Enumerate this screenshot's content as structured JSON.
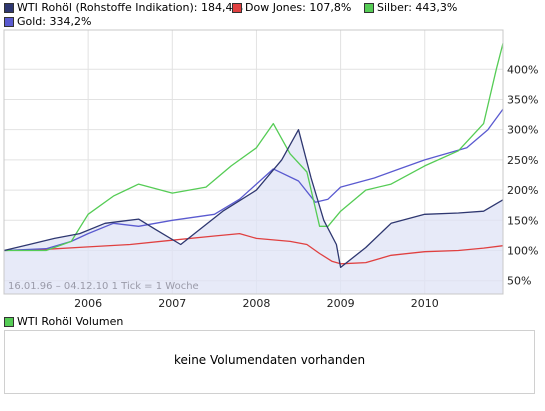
{
  "chart_data": [
    {
      "type": "line",
      "date_range": "16.01.96 – 04.12.10",
      "tick_info": "1 Tick = 1 Woche",
      "x_ticks": [
        "2006",
        "2007",
        "2008",
        "2009",
        "2010"
      ],
      "y_ticks": [
        "50%",
        "100%",
        "150%",
        "200%",
        "250%",
        "300%",
        "350%",
        "400%"
      ],
      "ylim": [
        28,
        465
      ],
      "grid": true,
      "legend_position": "top",
      "series": [
        {
          "name": "WTI Rohöl (Rohstoffe Indikation)",
          "value_label": "184,4%",
          "color": "#2e3770",
          "filled": true,
          "x": [
            2005.0,
            2005.3,
            2005.6,
            2005.9,
            2006.2,
            2006.6,
            2006.8,
            2007.1,
            2007.6,
            2008.0,
            2008.3,
            2008.5,
            2008.65,
            2008.8,
            2008.95,
            2009.0,
            2009.3,
            2009.6,
            2010.0,
            2010.4,
            2010.7,
            2010.93
          ],
          "values": [
            100,
            110,
            120,
            128,
            145,
            152,
            135,
            110,
            165,
            200,
            250,
            300,
            220,
            150,
            110,
            72,
            105,
            145,
            160,
            162,
            165,
            184
          ]
        },
        {
          "name": "Dow Jones",
          "value_label": "107,8%",
          "color": "#e04040",
          "filled": false,
          "x": [
            2005.0,
            2005.5,
            2006.0,
            2006.5,
            2007.0,
            2007.5,
            2007.8,
            2008.0,
            2008.4,
            2008.6,
            2008.75,
            2008.9,
            2009.0,
            2009.3,
            2009.6,
            2010.0,
            2010.4,
            2010.7,
            2010.93
          ],
          "values": [
            100,
            102,
            106,
            110,
            117,
            124,
            128,
            120,
            115,
            110,
            95,
            82,
            78,
            80,
            92,
            98,
            100,
            104,
            108
          ]
        },
        {
          "name": "Silber",
          "value_label": "443,3%",
          "color": "#55cc55",
          "filled": false,
          "x": [
            2005.0,
            2005.5,
            2005.8,
            2006.0,
            2006.3,
            2006.6,
            2007.0,
            2007.4,
            2007.7,
            2008.0,
            2008.2,
            2008.4,
            2008.6,
            2008.75,
            2008.85,
            2009.0,
            2009.3,
            2009.6,
            2010.0,
            2010.4,
            2010.7,
            2010.85,
            2010.93
          ],
          "values": [
            100,
            100,
            115,
            160,
            190,
            210,
            195,
            205,
            240,
            270,
            310,
            260,
            230,
            140,
            140,
            165,
            200,
            210,
            240,
            265,
            310,
            400,
            443
          ]
        },
        {
          "name": "Gold",
          "value_label": "334,2%",
          "color": "#5a5ad0",
          "filled": false,
          "x": [
            2005.0,
            2005.5,
            2005.8,
            2006.0,
            2006.3,
            2006.6,
            2007.0,
            2007.5,
            2007.8,
            2008.0,
            2008.2,
            2008.5,
            2008.7,
            2008.85,
            2009.0,
            2009.4,
            2009.7,
            2010.0,
            2010.5,
            2010.75,
            2010.93
          ],
          "values": [
            100,
            103,
            115,
            128,
            145,
            140,
            150,
            160,
            185,
            210,
            235,
            215,
            180,
            185,
            205,
            220,
            235,
            250,
            270,
            300,
            334
          ]
        }
      ]
    },
    {
      "type": "bar",
      "title": "WTI Rohöl Volumen",
      "color": "#55cc55",
      "empty_message": "keine Volumendaten vorhanden"
    }
  ]
}
